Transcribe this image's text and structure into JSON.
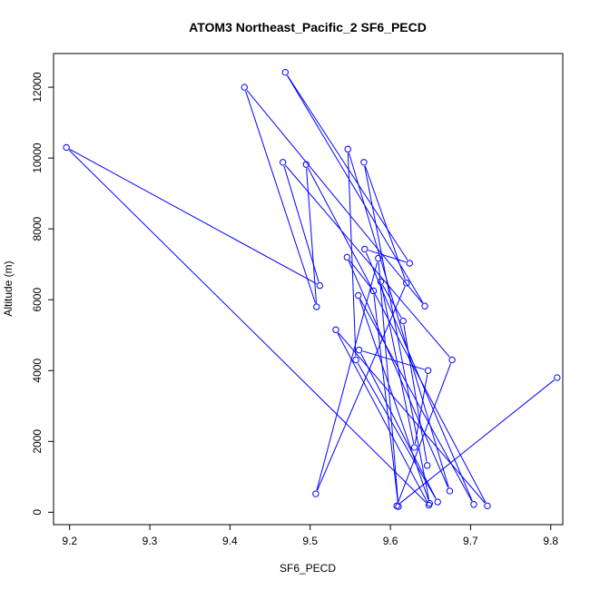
{
  "chart_data": {
    "type": "line",
    "title": "ATOM3 Northeast_Pacific_2 SF6_PECD",
    "xlabel": "SF6_PECD",
    "ylabel": "Altitude (m)",
    "xlim": [
      9.18,
      9.815
    ],
    "ylim": [
      -350,
      12950
    ],
    "xticks": [
      9.2,
      9.3,
      9.4,
      9.5,
      9.6,
      9.7,
      9.8
    ],
    "xtick_labels": [
      "9.2",
      "9.3",
      "9.4",
      "9.5",
      "9.6",
      "9.7",
      "9.8"
    ],
    "yticks": [
      0,
      2000,
      4000,
      6000,
      8000,
      10000,
      12000
    ],
    "ytick_labels": [
      "0",
      "2000",
      "4000",
      "6000",
      "8000",
      "10000",
      "12000"
    ],
    "grid": false,
    "marker": "open-circle",
    "series_color": "#0000ff",
    "points": [
      {
        "x": 9.808,
        "y": 3800
      },
      {
        "x": 9.608,
        "y": 180
      },
      {
        "x": 9.677,
        "y": 4300
      },
      {
        "x": 9.466,
        "y": 9880
      },
      {
        "x": 9.512,
        "y": 6400
      },
      {
        "x": 9.196,
        "y": 10300
      },
      {
        "x": 9.648,
        "y": 200
      },
      {
        "x": 9.532,
        "y": 5150
      },
      {
        "x": 9.721,
        "y": 180
      },
      {
        "x": 9.495,
        "y": 9820
      },
      {
        "x": 9.508,
        "y": 5800
      },
      {
        "x": 9.418,
        "y": 12000
      },
      {
        "x": 9.643,
        "y": 5820
      },
      {
        "x": 9.469,
        "y": 12420
      },
      {
        "x": 9.624,
        "y": 7030
      },
      {
        "x": 9.568,
        "y": 7430
      },
      {
        "x": 9.704,
        "y": 220
      },
      {
        "x": 9.56,
        "y": 6120
      },
      {
        "x": 9.649,
        "y": 250
      },
      {
        "x": 9.567,
        "y": 9880
      },
      {
        "x": 9.62,
        "y": 6470
      },
      {
        "x": 9.507,
        "y": 520
      },
      {
        "x": 9.585,
        "y": 7170
      },
      {
        "x": 9.61,
        "y": 160
      },
      {
        "x": 9.579,
        "y": 6250
      },
      {
        "x": 9.546,
        "y": 7200
      },
      {
        "x": 9.674,
        "y": 600
      },
      {
        "x": 9.547,
        "y": 10250
      },
      {
        "x": 9.557,
        "y": 4300
      },
      {
        "x": 9.659,
        "y": 290
      },
      {
        "x": 9.561,
        "y": 4580
      },
      {
        "x": 9.647,
        "y": 4000
      },
      {
        "x": 9.63,
        "y": 1830
      },
      {
        "x": 9.588,
        "y": 6510
      },
      {
        "x": 9.616,
        "y": 5400
      },
      {
        "x": 9.646,
        "y": 1320
      }
    ]
  }
}
